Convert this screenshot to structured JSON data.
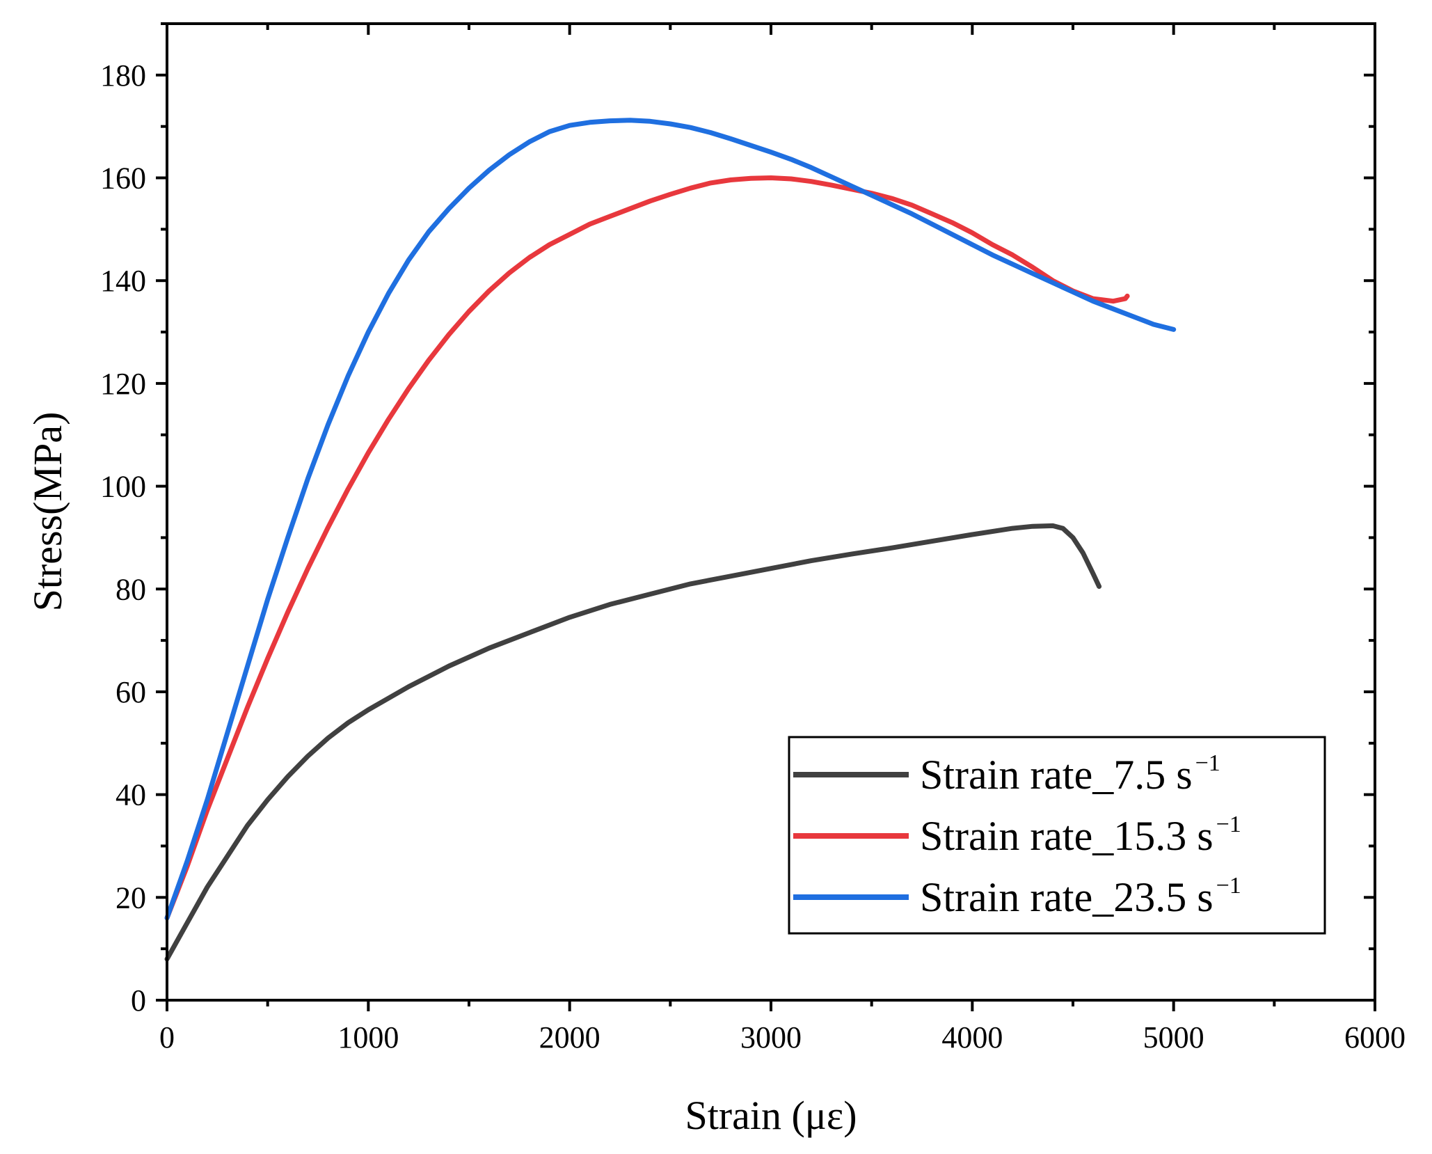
{
  "chart_data": {
    "type": "line",
    "title": "",
    "xlabel": "Strain (με)",
    "ylabel": "Stress(MPa)",
    "xlim": [
      0,
      6000
    ],
    "ylim": [
      0,
      190
    ],
    "xticks": [
      0,
      1000,
      2000,
      3000,
      4000,
      5000,
      6000
    ],
    "yticks": [
      0,
      20,
      40,
      60,
      80,
      100,
      120,
      140,
      160,
      180
    ],
    "grid": false,
    "legend_position": "bottom-right",
    "series": [
      {
        "name": "Strain rate_7.5 s",
        "name_superscript": "−1",
        "color": "#404040",
        "x": [
          0,
          100,
          200,
          300,
          400,
          500,
          600,
          700,
          800,
          900,
          1000,
          1200,
          1400,
          1600,
          1800,
          2000,
          2200,
          2400,
          2600,
          2800,
          3000,
          3200,
          3400,
          3600,
          3800,
          4000,
          4200,
          4300,
          4400,
          4450,
          4500,
          4550,
          4600,
          4630
        ],
        "y": [
          8,
          15,
          22,
          28,
          34,
          39,
          43.5,
          47.5,
          51,
          54,
          56.5,
          61,
          65,
          68.5,
          71.5,
          74.5,
          77,
          79,
          81,
          82.5,
          84,
          85.5,
          86.8,
          88,
          89.3,
          90.6,
          91.8,
          92.2,
          92.3,
          91.8,
          90,
          87,
          83,
          80.5
        ]
      },
      {
        "name": "Strain rate_15.3 s",
        "name_superscript": "−1",
        "color": "#e8383d",
        "x": [
          0,
          100,
          200,
          300,
          400,
          500,
          600,
          700,
          800,
          900,
          1000,
          1100,
          1200,
          1300,
          1400,
          1500,
          1600,
          1700,
          1800,
          1900,
          2000,
          2100,
          2200,
          2300,
          2400,
          2500,
          2600,
          2700,
          2800,
          2900,
          3000,
          3100,
          3200,
          3300,
          3400,
          3500,
          3600,
          3700,
          3800,
          3900,
          4000,
          4100,
          4200,
          4300,
          4400,
          4500,
          4600,
          4700,
          4760,
          4770
        ],
        "y": [
          16,
          26,
          37,
          47,
          57,
          66.5,
          75.5,
          84,
          92,
          99.5,
          106.5,
          113,
          119,
          124.5,
          129.5,
          134,
          138,
          141.5,
          144.5,
          147,
          149,
          151,
          152.5,
          154,
          155.5,
          156.8,
          158,
          159,
          159.6,
          159.9,
          160,
          159.8,
          159.3,
          158.6,
          157.8,
          157,
          156,
          154.7,
          153,
          151.3,
          149.3,
          147,
          145,
          142.6,
          140,
          138,
          136.5,
          136,
          136.5,
          137
        ]
      },
      {
        "name": "Strain rate_23.5 s",
        "name_superscript": "−1",
        "color": "#1f6fe0",
        "x": [
          0,
          100,
          200,
          300,
          400,
          500,
          600,
          700,
          800,
          900,
          1000,
          1100,
          1200,
          1300,
          1400,
          1500,
          1600,
          1700,
          1800,
          1900,
          2000,
          2100,
          2200,
          2300,
          2400,
          2500,
          2600,
          2700,
          2800,
          2900,
          3000,
          3100,
          3200,
          3300,
          3400,
          3500,
          3600,
          3700,
          3800,
          3900,
          4000,
          4100,
          4200,
          4300,
          4400,
          4500,
          4600,
          4700,
          4800,
          4900,
          5000
        ],
        "y": [
          16,
          27,
          39,
          52,
          65,
          78,
          90,
          101.5,
          112,
          121.5,
          130,
          137.5,
          144,
          149.5,
          154,
          158,
          161.5,
          164.5,
          167,
          169,
          170.2,
          170.8,
          171.1,
          171.2,
          171,
          170.5,
          169.8,
          168.8,
          167.6,
          166.3,
          165,
          163.6,
          162,
          160.2,
          158.4,
          156.6,
          154.8,
          153,
          151,
          149,
          147,
          145,
          143.2,
          141.4,
          139.6,
          137.8,
          136,
          134.5,
          133,
          131.5,
          130.5
        ]
      }
    ]
  }
}
